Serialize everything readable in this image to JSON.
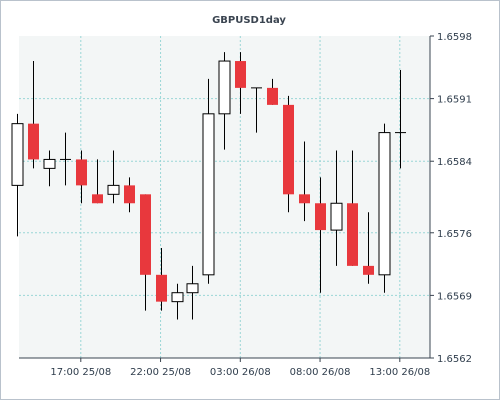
{
  "chart_data": {
    "type": "candlestick",
    "title": "GBPUSD1day",
    "colors": {
      "bullish_fill": "#ffffff",
      "bearish_fill": "#e8383d",
      "candle_stroke": "#000000",
      "plot_background": "#f3f6f6",
      "grid": "#9ad6d6",
      "axis": "#3a4450"
    },
    "ylim": [
      1.6562,
      1.6598
    ],
    "y_ticks": [
      "1.6598",
      "1.6591",
      "1.6584",
      "1.6576",
      "1.6569",
      "1.6562"
    ],
    "x_ticks": [
      "17:00 25/08",
      "22:00 25/08",
      "03:00 26/08",
      "08:00 26/08",
      "13:00 26/08"
    ],
    "x_tick_hours": [
      4,
      9,
      14,
      19,
      24
    ],
    "grid": true,
    "candles": [
      {
        "hour": 0,
        "open": 1.65813,
        "high": 1.65893,
        "low": 1.65756,
        "close": 1.65882
      },
      {
        "hour": 1,
        "open": 1.65882,
        "high": 1.65952,
        "low": 1.65832,
        "close": 1.65842
      },
      {
        "hour": 2,
        "open": 1.65832,
        "high": 1.65852,
        "low": 1.65812,
        "close": 1.65842
      },
      {
        "hour": 3,
        "open": 1.65842,
        "high": 1.65872,
        "low": 1.65813,
        "close": 1.65842
      },
      {
        "hour": 4,
        "open": 1.65842,
        "high": 1.65852,
        "low": 1.65793,
        "close": 1.65813
      },
      {
        "hour": 5,
        "open": 1.65803,
        "high": 1.65842,
        "low": 1.65793,
        "close": 1.65793
      },
      {
        "hour": 6,
        "open": 1.65803,
        "high": 1.65852,
        "low": 1.65793,
        "close": 1.65813
      },
      {
        "hour": 7,
        "open": 1.65813,
        "high": 1.65822,
        "low": 1.65783,
        "close": 1.65793
      },
      {
        "hour": 8,
        "open": 1.65803,
        "high": 1.65803,
        "low": 1.65673,
        "close": 1.65713
      },
      {
        "hour": 9,
        "open": 1.65713,
        "high": 1.65743,
        "low": 1.65673,
        "close": 1.65683
      },
      {
        "hour": 10,
        "open": 1.65683,
        "high": 1.65703,
        "low": 1.65663,
        "close": 1.65693
      },
      {
        "hour": 11,
        "open": 1.65693,
        "high": 1.65723,
        "low": 1.65663,
        "close": 1.65703
      },
      {
        "hour": 12,
        "open": 1.65713,
        "high": 1.65932,
        "low": 1.65703,
        "close": 1.65893
      },
      {
        "hour": 13,
        "open": 1.65893,
        "high": 1.65962,
        "low": 1.65853,
        "close": 1.65952
      },
      {
        "hour": 14,
        "open": 1.65952,
        "high": 1.65962,
        "low": 1.65893,
        "close": 1.65922
      },
      {
        "hour": 15,
        "open": 1.65922,
        "high": 1.65922,
        "low": 1.65872,
        "close": 1.65922
      },
      {
        "hour": 16,
        "open": 1.65922,
        "high": 1.65932,
        "low": 1.65903,
        "close": 1.65903
      },
      {
        "hour": 17,
        "open": 1.65903,
        "high": 1.65913,
        "low": 1.65783,
        "close": 1.65803
      },
      {
        "hour": 18,
        "open": 1.65803,
        "high": 1.65862,
        "low": 1.65773,
        "close": 1.65793
      },
      {
        "hour": 19,
        "open": 1.65793,
        "high": 1.65822,
        "low": 1.65693,
        "close": 1.65763
      },
      {
        "hour": 20,
        "open": 1.65763,
        "high": 1.65852,
        "low": 1.65723,
        "close": 1.65793
      },
      {
        "hour": 21,
        "open": 1.65793,
        "high": 1.65852,
        "low": 1.65723,
        "close": 1.65723
      },
      {
        "hour": 22,
        "open": 1.65723,
        "high": 1.65783,
        "low": 1.65703,
        "close": 1.65713
      },
      {
        "hour": 23,
        "open": 1.65713,
        "high": 1.65882,
        "low": 1.65693,
        "close": 1.65872
      },
      {
        "hour": 24,
        "open": 1.65872,
        "high": 1.65942,
        "low": 1.65832,
        "close": 1.65872
      }
    ]
  }
}
